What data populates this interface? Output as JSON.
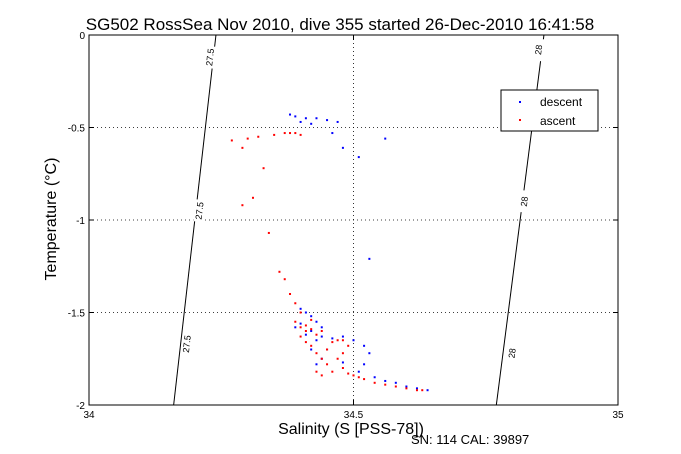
{
  "chart_data": {
    "type": "scatter",
    "title": "SG502 RossSea Nov 2010, dive 355 started 26-Dec-2010 16:41:58",
    "xlabel": "Salinity (S [PSS-78])",
    "ylabel": "Temperature (°C)",
    "xlim": [
      34,
      35
    ],
    "ylim": [
      -2,
      0
    ],
    "x_ticks": [
      "34",
      "34.5",
      "35"
    ],
    "y_ticks": [
      "0",
      "-0.5",
      "-1",
      "-1.5",
      "-2"
    ],
    "grid": true,
    "legend_position": "top-right",
    "series": [
      {
        "name": "descent",
        "color": "#0000ff",
        "points": [
          [
            34.38,
            -0.43
          ],
          [
            34.39,
            -0.44
          ],
          [
            34.41,
            -0.45
          ],
          [
            34.43,
            -0.45
          ],
          [
            34.45,
            -0.46
          ],
          [
            34.47,
            -0.47
          ],
          [
            34.4,
            -0.47
          ],
          [
            34.42,
            -0.48
          ],
          [
            34.46,
            -0.53
          ],
          [
            34.51,
            -0.66
          ],
          [
            34.56,
            -0.56
          ],
          [
            34.48,
            -0.61
          ],
          [
            34.53,
            -1.21
          ],
          [
            34.4,
            -1.48
          ],
          [
            34.41,
            -1.5
          ],
          [
            34.42,
            -1.52
          ],
          [
            34.43,
            -1.55
          ],
          [
            34.44,
            -1.58
          ],
          [
            34.42,
            -1.6
          ],
          [
            34.41,
            -1.62
          ],
          [
            34.43,
            -1.65
          ],
          [
            34.44,
            -1.63
          ],
          [
            34.46,
            -1.64
          ],
          [
            34.48,
            -1.63
          ],
          [
            34.5,
            -1.65
          ],
          [
            34.52,
            -1.68
          ],
          [
            34.53,
            -1.72
          ],
          [
            34.52,
            -1.78
          ],
          [
            34.51,
            -1.82
          ],
          [
            34.54,
            -1.85
          ],
          [
            34.56,
            -1.87
          ],
          [
            34.58,
            -1.88
          ],
          [
            34.6,
            -1.9
          ],
          [
            34.62,
            -1.91
          ],
          [
            34.64,
            -1.92
          ],
          [
            34.44,
            -1.75
          ],
          [
            34.43,
            -1.78
          ],
          [
            34.45,
            -1.7
          ],
          [
            34.4,
            -1.56
          ],
          [
            34.39,
            -1.58
          ],
          [
            34.42,
            -1.7
          ],
          [
            34.48,
            -1.77
          ]
        ]
      },
      {
        "name": "ascent",
        "color": "#ff0000",
        "points": [
          [
            34.27,
            -0.57
          ],
          [
            34.3,
            -0.56
          ],
          [
            34.32,
            -0.55
          ],
          [
            34.35,
            -0.54
          ],
          [
            34.37,
            -0.53
          ],
          [
            34.38,
            -0.53
          ],
          [
            34.39,
            -0.53
          ],
          [
            34.4,
            -0.54
          ],
          [
            34.29,
            -0.61
          ],
          [
            34.33,
            -0.72
          ],
          [
            34.31,
            -0.88
          ],
          [
            34.34,
            -1.07
          ],
          [
            34.29,
            -0.92
          ],
          [
            34.36,
            -1.28
          ],
          [
            34.37,
            -1.32
          ],
          [
            34.38,
            -1.4
          ],
          [
            34.39,
            -1.45
          ],
          [
            34.4,
            -1.5
          ],
          [
            34.39,
            -1.55
          ],
          [
            34.4,
            -1.58
          ],
          [
            34.41,
            -1.6
          ],
          [
            34.4,
            -1.63
          ],
          [
            34.41,
            -1.66
          ],
          [
            34.42,
            -1.68
          ],
          [
            34.43,
            -1.72
          ],
          [
            34.44,
            -1.75
          ],
          [
            34.45,
            -1.78
          ],
          [
            34.43,
            -1.82
          ],
          [
            34.44,
            -1.84
          ],
          [
            34.45,
            -1.7
          ],
          [
            34.46,
            -1.66
          ],
          [
            34.47,
            -1.65
          ],
          [
            34.48,
            -1.65
          ],
          [
            34.49,
            -1.68
          ],
          [
            34.48,
            -1.72
          ],
          [
            34.47,
            -1.75
          ],
          [
            34.48,
            -1.8
          ],
          [
            34.5,
            -1.84
          ],
          [
            34.52,
            -1.86
          ],
          [
            34.54,
            -1.88
          ],
          [
            34.56,
            -1.89
          ],
          [
            34.58,
            -1.9
          ],
          [
            34.6,
            -1.91
          ],
          [
            34.62,
            -1.92
          ],
          [
            34.63,
            -1.92
          ],
          [
            34.42,
            -1.59
          ],
          [
            34.41,
            -1.57
          ],
          [
            34.43,
            -1.62
          ],
          [
            34.42,
            -1.54
          ],
          [
            34.44,
            -1.6
          ],
          [
            34.46,
            -1.82
          ],
          [
            34.49,
            -1.83
          ],
          [
            34.51,
            -1.85
          ]
        ]
      }
    ],
    "contours": [
      {
        "label": "27.5",
        "from": [
          34.16,
          -2
        ],
        "to": [
          34.24,
          0
        ],
        "label_positions": [
          [
            34.185,
            -1.67
          ],
          [
            34.209,
            -0.95
          ],
          [
            34.229,
            -0.12
          ]
        ]
      },
      {
        "label": "28",
        "from": [
          34.77,
          -2
        ],
        "to": [
          34.86,
          0
        ],
        "label_positions": [
          [
            34.8,
            -1.72
          ],
          [
            34.823,
            -0.9
          ],
          [
            34.85,
            -0.08
          ]
        ]
      }
    ],
    "footer": "SN: 114  CAL: 39897"
  }
}
